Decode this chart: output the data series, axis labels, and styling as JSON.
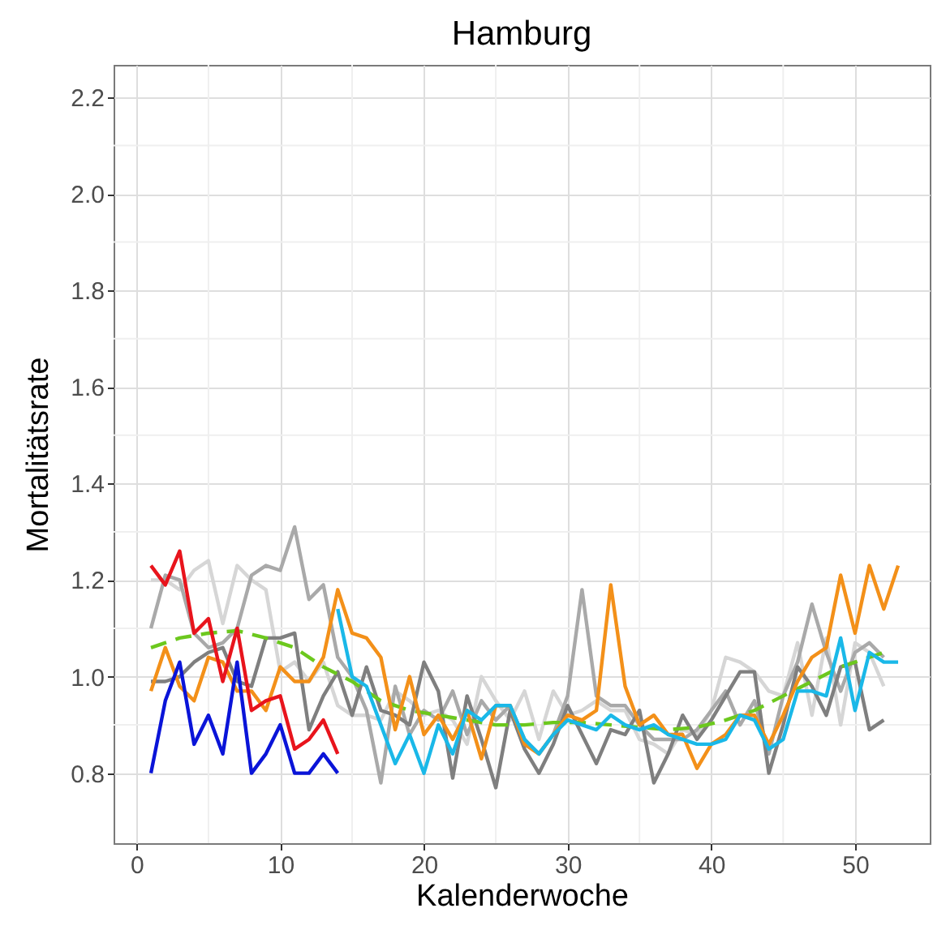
{
  "chart_data": {
    "type": "line",
    "title": "Hamburg",
    "xlabel": "Kalenderwoche",
    "ylabel": "Mortalitätsrate",
    "x": [
      1,
      2,
      3,
      4,
      5,
      6,
      7,
      8,
      9,
      10,
      11,
      12,
      13,
      14,
      15,
      16,
      17,
      18,
      19,
      20,
      21,
      22,
      23,
      24,
      25,
      26,
      27,
      28,
      29,
      30,
      31,
      32,
      33,
      34,
      35,
      36,
      37,
      38,
      39,
      40,
      41,
      42,
      43,
      44,
      45,
      46,
      47,
      48,
      49,
      50,
      51,
      52
    ],
    "xlim": [
      -1.6,
      55.2
    ],
    "xticks": [
      0,
      10,
      20,
      30,
      40,
      50
    ],
    "ylim": [
      0.655,
      2.267
    ],
    "yticks": [
      0.8,
      {
        "value": 1,
        "label": "1.0"
      },
      1.2,
      1.4,
      1.6,
      1.8,
      {
        "value": 2,
        "label": "2.0"
      },
      2.2
    ],
    "grid": true,
    "line_style": "solid",
    "series": [
      {
        "color": "#d6d6d6",
        "values": [
          1.2,
          1.2,
          1.18,
          1.22,
          1.24,
          1.11,
          1.23,
          1.2,
          1.18,
          1.01,
          1.03,
          0.99,
          1.03,
          0.94,
          0.92,
          0.92,
          0.91,
          0.97,
          0.95,
          0.92,
          0.93,
          0.91,
          0.86,
          1.0,
          0.95,
          0.91,
          0.97,
          0.87,
          0.97,
          0.92,
          0.93,
          0.95,
          0.93,
          0.93,
          0.87,
          0.86,
          0.84,
          0.89,
          0.88,
          0.93,
          1.04,
          1.03,
          1.01,
          0.97,
          0.96,
          1.07,
          0.92,
          1.08,
          0.9,
          1.07,
          1.05,
          0.98
        ]
      },
      {
        "color": "#a9a9a9",
        "values": [
          1.1,
          1.21,
          1.2,
          1.09,
          1.06,
          1.07,
          1.1,
          1.21,
          1.23,
          1.22,
          1.31,
          1.16,
          1.19,
          1.04,
          1.0,
          0.93,
          0.78,
          0.98,
          0.88,
          0.93,
          0.91,
          0.97,
          0.88,
          0.95,
          0.91,
          0.94,
          0.87,
          0.84,
          0.88,
          0.96,
          1.18,
          0.96,
          0.94,
          0.94,
          0.9,
          0.87,
          0.87,
          0.87,
          0.89,
          0.93,
          0.97,
          0.9,
          0.95,
          0.84,
          0.96,
          1.03,
          1.15,
          1.05,
          0.97,
          1.05,
          1.07,
          1.04
        ]
      },
      {
        "color": "#7f7f7f",
        "values": [
          0.99,
          0.99,
          1.0,
          1.03,
          1.05,
          1.06,
          0.99,
          0.98,
          1.08,
          1.08,
          1.09,
          0.89,
          0.96,
          1.01,
          0.92,
          1.02,
          0.93,
          0.92,
          0.9,
          1.03,
          0.97,
          0.79,
          0.96,
          0.87,
          0.77,
          0.93,
          0.85,
          0.8,
          0.86,
          0.94,
          0.88,
          0.82,
          0.89,
          0.88,
          0.93,
          0.78,
          0.84,
          0.92,
          0.87,
          0.91,
          0.96,
          1.01,
          1.01,
          0.8,
          0.9,
          1.02,
          0.98,
          0.92,
          1.02,
          1.03,
          0.89,
          0.91
        ]
      },
      {
        "color": "#6cc81e",
        "line_style": "dashed",
        "x": [
          1,
          3,
          5,
          7,
          9,
          11,
          13,
          15,
          17,
          19,
          21,
          23,
          25,
          27,
          29,
          31,
          33,
          35,
          37,
          39,
          41,
          43,
          45,
          47,
          49,
          51,
          52
        ],
        "values": [
          1.06,
          1.08,
          1.09,
          1.095,
          1.08,
          1.06,
          1.02,
          0.99,
          0.95,
          0.93,
          0.92,
          0.91,
          0.9,
          0.9,
          0.905,
          0.905,
          0.9,
          0.895,
          0.89,
          0.895,
          0.91,
          0.93,
          0.96,
          0.99,
          1.02,
          1.04,
          1.05
        ]
      },
      {
        "color": "#f39019",
        "x": [
          1,
          2,
          3,
          4,
          5,
          6,
          7,
          8,
          9,
          10,
          11,
          12,
          13,
          14,
          15,
          16,
          17,
          18,
          19,
          20,
          21,
          22,
          23,
          24,
          25,
          26,
          27,
          28,
          29,
          30,
          31,
          32,
          33,
          34,
          35,
          36,
          37,
          38,
          39,
          40,
          41,
          42,
          43,
          44,
          45,
          46,
          47,
          48,
          49,
          50,
          51,
          52,
          53
        ],
        "values": [
          0.97,
          1.06,
          0.98,
          0.95,
          1.04,
          1.03,
          0.97,
          0.97,
          0.93,
          1.02,
          0.99,
          0.99,
          1.04,
          1.18,
          1.09,
          1.08,
          1.04,
          0.89,
          1.0,
          0.88,
          0.92,
          0.87,
          0.93,
          0.83,
          0.94,
          0.94,
          0.86,
          0.84,
          0.88,
          0.92,
          0.91,
          0.93,
          1.19,
          0.98,
          0.9,
          0.92,
          0.88,
          0.88,
          0.81,
          0.86,
          0.88,
          0.92,
          0.92,
          0.86,
          0.92,
          0.99,
          1.04,
          1.06,
          1.21,
          1.09,
          1.23,
          1.14,
          1.23
        ]
      },
      {
        "color": "#1ab8e8",
        "x": [
          14,
          15,
          16,
          17,
          18,
          19,
          20,
          21,
          22,
          23,
          24,
          25,
          26,
          27,
          28,
          29,
          30,
          31,
          32,
          33,
          34,
          35,
          36,
          37,
          38,
          39,
          40,
          41,
          42,
          43,
          44,
          45,
          46,
          47,
          48,
          49,
          50,
          51,
          52,
          53
        ],
        "values": [
          1.14,
          1.0,
          0.98,
          0.9,
          0.82,
          0.88,
          0.8,
          0.9,
          0.84,
          0.93,
          0.91,
          0.94,
          0.94,
          0.87,
          0.84,
          0.88,
          0.91,
          0.9,
          0.89,
          0.92,
          0.9,
          0.89,
          0.9,
          0.88,
          0.87,
          0.86,
          0.86,
          0.87,
          0.92,
          0.91,
          0.85,
          0.87,
          0.97,
          0.97,
          0.96,
          1.08,
          0.93,
          1.05,
          1.03,
          1.03
        ]
      },
      {
        "color": "#e8141c",
        "x": [
          1,
          2,
          3,
          4,
          5,
          6,
          7,
          8,
          9,
          10,
          11,
          12,
          13,
          14
        ],
        "values": [
          1.23,
          1.19,
          1.26,
          1.09,
          1.12,
          0.99,
          1.1,
          0.93,
          0.95,
          0.96,
          0.85,
          0.87,
          0.91,
          0.84
        ]
      },
      {
        "color": "#0a14d8",
        "x": [
          1,
          2,
          3,
          4,
          5,
          6,
          7,
          8,
          9,
          10,
          11,
          12,
          13,
          14
        ],
        "values": [
          0.8,
          0.95,
          1.03,
          0.86,
          0.92,
          0.84,
          1.03,
          0.8,
          0.84,
          0.9,
          0.8,
          0.8,
          0.84,
          0.8
        ]
      }
    ]
  }
}
